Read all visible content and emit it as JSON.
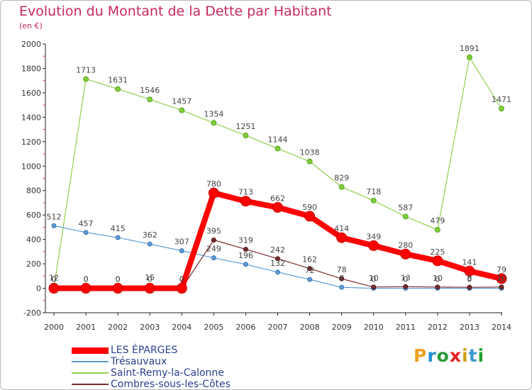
{
  "title": "Evolution du Montant de la Dette par Habitant",
  "unit_label": "(en €)",
  "logo": {
    "text": "Proxiti",
    "letter_colors": [
      "#f0a020",
      "#1e90d0",
      "#2a9a3a",
      "#e02020",
      "#d0a010",
      "#3a9ad0",
      "#20a030"
    ]
  },
  "chart_data": {
    "type": "line",
    "title": "Evolution du Montant de la Dette par Habitant",
    "ylabel": "(en €)",
    "xlabel": "",
    "x": [
      "2000",
      "2001",
      "2002",
      "2003",
      "2004",
      "2005",
      "2006",
      "2007",
      "2008",
      "2009",
      "2010",
      "2011",
      "2012",
      "2013",
      "2014"
    ],
    "ylim": [
      -200,
      2000
    ],
    "yticks": [
      "-200",
      "0",
      "200",
      "400",
      "600",
      "800",
      "1000",
      "1200",
      "1400",
      "1600",
      "1800",
      "2000"
    ],
    "grid": false,
    "legend_position": "bottom-left",
    "series": [
      {
        "name": "LES ÉPARGES",
        "color": "#ff0000",
        "values": [
          0,
          0,
          0,
          0,
          0,
          780,
          713,
          662,
          590,
          414,
          349,
          280,
          225,
          141,
          79
        ],
        "labels": [
          "0",
          "0",
          "0",
          "0",
          "0",
          "780",
          "713",
          "662",
          "590",
          "414",
          "349",
          "280",
          "225",
          "141",
          "79"
        ]
      },
      {
        "name": "Trésauvaux",
        "color": "#5b9bd5",
        "values": [
          512,
          457,
          415,
          362,
          307,
          249,
          196,
          132,
          72,
          8,
          0,
          0,
          0,
          0,
          0
        ],
        "labels": [
          "512",
          "457",
          "415",
          "362",
          "307",
          "249",
          "196",
          "132",
          "72",
          "8",
          "0",
          "0",
          "0",
          "0",
          "0"
        ]
      },
      {
        "name": "Saint-Remy-la-Calonne",
        "color": "#8fd14f",
        "values": [
          0,
          1713,
          1631,
          1546,
          1457,
          1354,
          1251,
          1144,
          1038,
          829,
          718,
          587,
          479,
          1891,
          1471
        ],
        "labels": [
          "0",
          "1713",
          "1631",
          "1546",
          "1457",
          "1354",
          "1251",
          "1144",
          "1038",
          "829",
          "718",
          "587",
          "479",
          "1891",
          "1471"
        ]
      },
      {
        "name": "Combres-sous-les-Côtes",
        "color": "#7a2b2b",
        "values": [
          12,
          0,
          0,
          15,
          0,
          395,
          319,
          242,
          162,
          78,
          10,
          13,
          10,
          8,
          10
        ],
        "labels": [
          "12",
          "0",
          "0",
          "15",
          "0",
          "395",
          "319",
          "242",
          "162",
          "78",
          "10",
          "13",
          "10",
          "8",
          "10"
        ]
      }
    ]
  }
}
